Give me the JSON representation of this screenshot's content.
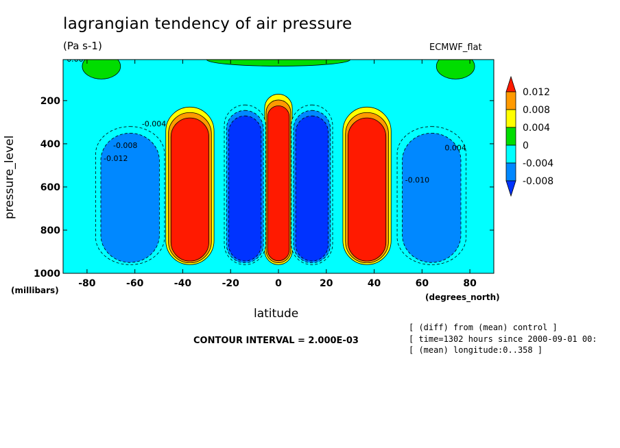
{
  "header": {
    "title": "lagrangian tendency of air pressure",
    "units": "(Pa s-1)",
    "model": "ECMWF_flat"
  },
  "annotations": {
    "contour_interval": "CONTOUR INTERVAL = 2.000E-03",
    "diff_note": "[ (diff) from (mean) control ]",
    "time_note": "[ time=1302 hours since 2000-09-01 00:",
    "lon_note": "[ (mean) longitude:0..358 ]"
  },
  "chart_data": {
    "type": "heatmap",
    "title": "lagrangian tendency of air pressure",
    "units": "(Pa s-1)",
    "xlabel": "latitude",
    "xunits": "(degrees_north)",
    "ylabel": "pressure_level",
    "yunits": "(millibars)",
    "xlim": [
      -90,
      90
    ],
    "ylim": [
      1000,
      10
    ],
    "x_ticks": [
      -80,
      -60,
      -40,
      -20,
      0,
      20,
      40,
      60,
      80
    ],
    "x_tick_labels": [
      "-80",
      "-60",
      "-40",
      "-20",
      "0",
      "20",
      "40",
      "60",
      "80"
    ],
    "y_ticks": [
      200,
      400,
      600,
      800,
      1000
    ],
    "y_tick_labels": [
      "200",
      "400",
      "600",
      "800",
      "1000"
    ],
    "colorbar": {
      "levels": [
        0.012,
        0.008,
        0.004,
        0,
        -0.004,
        -0.008
      ],
      "labels": [
        "0.012",
        "0.008",
        "0.004",
        "0",
        "-0.004",
        "-0.008"
      ],
      "colors": [
        "#ff1a00",
        "#ff9a00",
        "#ffff00",
        "#00dd00",
        "#00ffff",
        "#0088ff",
        "#0033ff"
      ]
    },
    "background_color": "#00ffff",
    "features": [
      {
        "name": "equatorial-max",
        "lat_center": 0,
        "lat_half_width": 4,
        "p_top": 170,
        "p_bottom": 960,
        "value": 0.014
      },
      {
        "name": "south-subtropical-min",
        "lat_center": -14,
        "lat_half_width": 6,
        "p_top": 220,
        "p_bottom": 960,
        "value": -0.012
      },
      {
        "name": "north-subtropical-min",
        "lat_center": 14,
        "lat_half_width": 6,
        "p_top": 220,
        "p_bottom": 960,
        "value": -0.012
      },
      {
        "name": "south-midlat-max",
        "lat_center": -37,
        "lat_half_width": 7,
        "p_top": 230,
        "p_bottom": 960,
        "value": 0.014
      },
      {
        "name": "north-midlat-max",
        "lat_center": 37,
        "lat_half_width": 7,
        "p_top": 230,
        "p_bottom": 960,
        "value": 0.014
      },
      {
        "name": "south-highlat-min",
        "lat_center": -62,
        "lat_half_width": 10,
        "p_top": 320,
        "p_bottom": 960,
        "value": -0.009
      },
      {
        "name": "north-highlat-min",
        "lat_center": 64,
        "lat_half_width": 10,
        "p_top": 320,
        "p_bottom": 960,
        "value": -0.009
      }
    ],
    "contour_labels": [
      {
        "text": "0.00",
        "lat": -85,
        "p": 20
      },
      {
        "text": "-0.004",
        "lat": -52,
        "p": 320
      },
      {
        "text": "-0.008",
        "lat": -64,
        "p": 420
      },
      {
        "text": "-0.012",
        "lat": -68,
        "p": 480
      },
      {
        "text": "0.004",
        "lat": 74,
        "p": 430
      },
      {
        "text": "-0.010",
        "lat": 58,
        "p": 580
      }
    ]
  }
}
